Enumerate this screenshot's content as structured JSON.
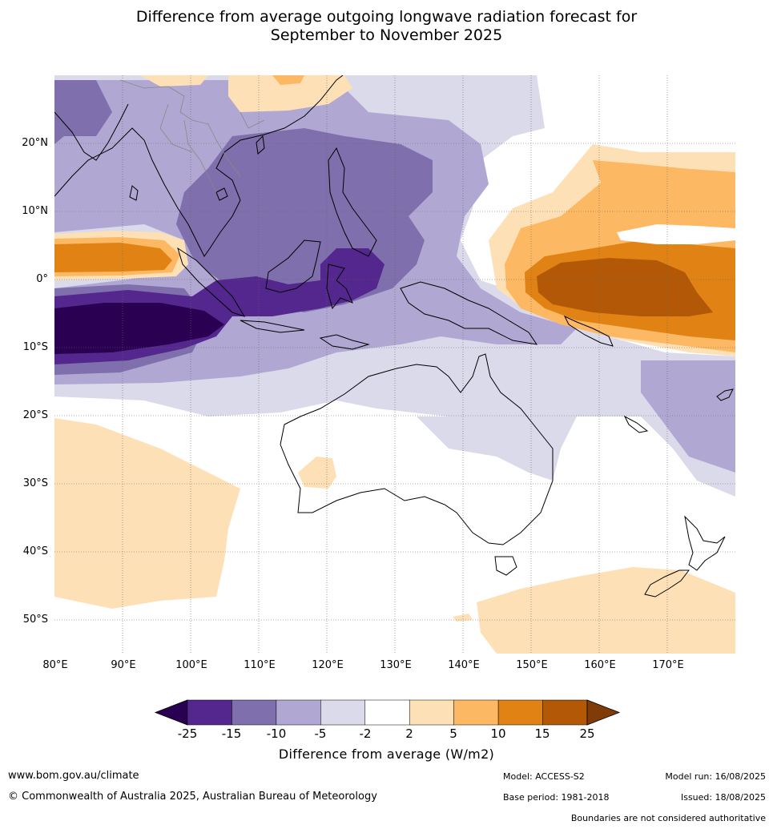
{
  "title_line1": "Difference from average outgoing longwave radiation forecast for",
  "title_line2": "September to November 2025",
  "map": {
    "lon_range": [
      80,
      180
    ],
    "lat_range": [
      -55,
      30
    ],
    "lat_labels": [
      "20°N",
      "10°N",
      "0°",
      "10°S",
      "20°S",
      "30°S",
      "40°S",
      "50°S"
    ],
    "lon_labels": [
      "80°E",
      "90°E",
      "100°E",
      "110°E",
      "120°E",
      "130°E",
      "140°E",
      "150°E",
      "160°E",
      "170°E"
    ],
    "land_outline_color": "#000000",
    "border_outline_color": "#888888"
  },
  "colorbar": {
    "ticks": [
      "-25",
      "-15",
      "-10",
      "-5",
      "-2",
      "2",
      "5",
      "10",
      "15",
      "25"
    ],
    "colors": [
      "#2a0052",
      "#54278f",
      "#7f6fac",
      "#b0a8d2",
      "#dadaeb",
      "#ffffff",
      "#fee0b6",
      "#fdb863",
      "#e08214",
      "#b35806",
      "#7f3b08"
    ],
    "label": "Difference from average (W/m2)"
  },
  "footer": {
    "website": "www.bom.gov.au/climate",
    "copyright": "© Commonwealth of Australia 2025, Australian Bureau of Meteorology",
    "model": "Model: ACCESS-S2",
    "base_period": "Base period: 1981-2018",
    "model_run": "Model run: 16/08/2025",
    "issued": "Issued: 18/08/2025",
    "disclaimer": "Boundaries are not considered authoritative"
  }
}
